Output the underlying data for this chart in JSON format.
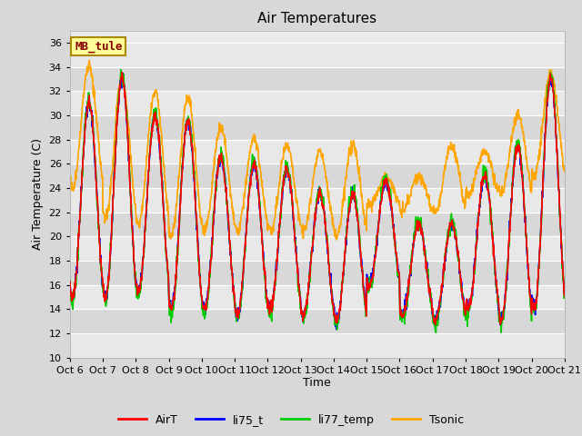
{
  "title": "Air Temperatures",
  "ylabel": "Air Temperature (C)",
  "xlabel": "Time",
  "ylim": [
    10,
    37
  ],
  "yticks": [
    10,
    12,
    14,
    16,
    18,
    20,
    22,
    24,
    26,
    28,
    30,
    32,
    34,
    36
  ],
  "x_labels": [
    "Oct 6",
    "Oct 7",
    "Oct 8",
    "Oct 9",
    "Oct 10",
    "Oct 11",
    "Oct 12",
    "Oct 13",
    "Oct 14",
    "Oct 15",
    "Oct 16",
    "Oct 17",
    "Oct 18",
    "Oct 19",
    "Oct 20",
    "Oct 21"
  ],
  "series": {
    "AirT": {
      "color": "#ff0000",
      "lw": 1.0
    },
    "li75_t": {
      "color": "#0000ff",
      "lw": 1.0
    },
    "li77_temp": {
      "color": "#00cc00",
      "lw": 1.0
    },
    "Tsonic": {
      "color": "#ffa500",
      "lw": 1.0
    }
  },
  "annotation_text": "MB_tule",
  "annotation_bg": "#ffff99",
  "annotation_border": "#aa8800",
  "plot_bg_light": "#ebebeb",
  "plot_bg_dark": "#d8d8d8",
  "grid_color": "#ffffff",
  "fig_bg": "#d8d8d8",
  "title_fontsize": 11,
  "axis_fontsize": 9,
  "tick_fontsize": 8,
  "legend_fontsize": 9,
  "day_peaks_air": [
    31.0,
    33.0,
    30.0,
    29.5,
    26.5,
    26.0,
    25.5,
    23.5,
    23.5,
    24.5,
    21.0,
    21.0,
    25.0,
    27.5,
    33.0
  ],
  "day_troughs_air": [
    15.0,
    15.0,
    15.5,
    14.0,
    14.0,
    13.5,
    14.0,
    13.5,
    13.0,
    16.0,
    13.5,
    13.0,
    14.0,
    13.0,
    14.0
  ],
  "day_peaks_tsonic": [
    34.0,
    33.0,
    32.0,
    31.5,
    29.0,
    28.0,
    27.5,
    27.0,
    27.5,
    25.0,
    25.0,
    27.5,
    27.0,
    30.0,
    33.5
  ],
  "day_troughs_tsonic": [
    24.0,
    21.5,
    21.0,
    20.0,
    20.5,
    20.5,
    20.5,
    20.5,
    20.0,
    22.5,
    22.0,
    22.0,
    23.5,
    23.5,
    25.0
  ]
}
